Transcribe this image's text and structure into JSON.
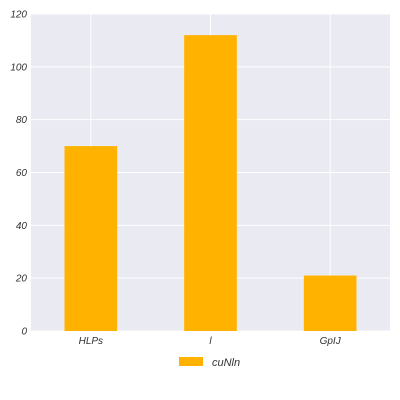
{
  "chart_data": {
    "type": "bar",
    "categories": [
      "HLPs",
      "l",
      "GpIJ"
    ],
    "series": [
      {
        "name": "cuNln",
        "values": [
          70,
          112,
          21
        ]
      }
    ],
    "ylim": [
      0,
      120
    ],
    "yticks": [
      0,
      20,
      40,
      60,
      80,
      100,
      120
    ],
    "grid": true,
    "legend_position": "bottom-center",
    "colors": {
      "bar": "#FFB300",
      "plot_bg": "#E9EAF2",
      "grid": "#FFFFFF"
    }
  }
}
